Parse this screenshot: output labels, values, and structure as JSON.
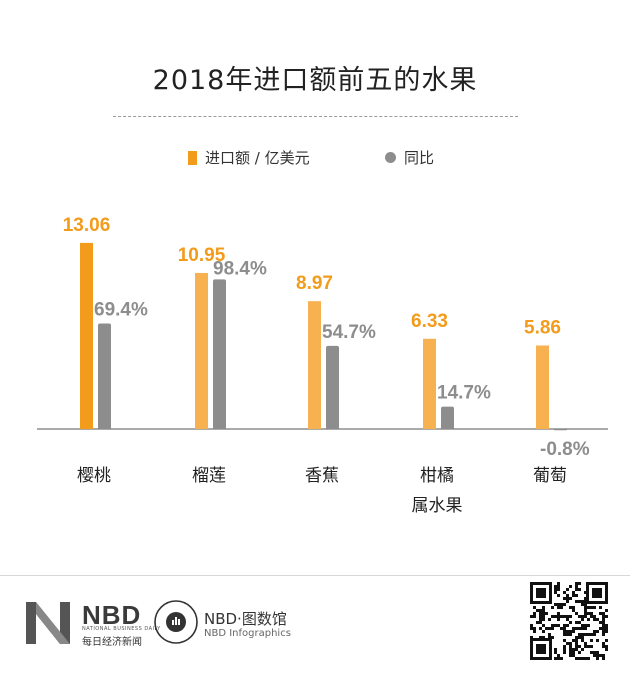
{
  "title": "2018年进口额前五的水果",
  "legend": {
    "primary": "进口额 / 亿美元",
    "secondary": "同比"
  },
  "colors": {
    "primary_bar": "#f39b1b",
    "primary_bar_light": "#f7b150",
    "secondary_bar": "#8d8d8d",
    "primary_label": "#f39b1b",
    "secondary_label": "#8d8d8d"
  },
  "chart_data": {
    "type": "bar",
    "title": "2018年进口额前五的水果",
    "categories": [
      "樱桃",
      "榴莲",
      "香蕉",
      "柑橘属水果",
      "葡萄"
    ],
    "category_lines": [
      [
        "樱桃"
      ],
      [
        "榴莲"
      ],
      [
        "香蕉"
      ],
      [
        "柑橘",
        "属水果"
      ],
      [
        "葡萄"
      ]
    ],
    "series": [
      {
        "name": "进口额 / 亿美元",
        "values": [
          13.06,
          10.95,
          8.97,
          6.33,
          5.86
        ],
        "labels": [
          "13.06",
          "10.95",
          "8.97",
          "6.33",
          "5.86"
        ]
      },
      {
        "name": "同比",
        "values": [
          69.4,
          98.4,
          54.7,
          14.7,
          -0.8
        ],
        "labels": [
          "69.4%",
          "98.4%",
          "54.7%",
          "14.7%",
          "-0.8%"
        ]
      }
    ],
    "legend_position": "top-center",
    "grid": false
  },
  "footer": {
    "logo_nbd": "NBD",
    "logo_nbd_sub": "NATIONAL BUSINESS DAILY",
    "logo_nbd_cn": "每日经济新闻",
    "logo_info": "NBD·图数馆",
    "logo_info_en": "NBD Infographics",
    "logo_nbd_icon": "nbd-n-logo-icon",
    "logo_info_icon": "infographics-circle-logo-icon",
    "qr_icon": "qr-code-icon"
  }
}
